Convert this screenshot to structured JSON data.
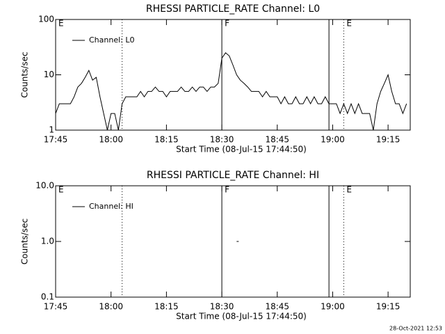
{
  "charts": [
    {
      "type": "line",
      "title": "RHESSI PARTICLE_RATE Channel: L0",
      "x_label": "Start Time (08-Jul-15 17:44:50)",
      "y_label": "Counts/sec",
      "log_y": true,
      "legend": "upper left",
      "xlim": [
        "17:45",
        "19:21"
      ],
      "xticks": [
        "17:45",
        "18:00",
        "18:15",
        "18:30",
        "18:45",
        "19:00",
        "19:15"
      ],
      "ylim": [
        1,
        100
      ],
      "yticks": [
        1,
        10,
        100
      ],
      "lines": [
        {
          "x": "18:03",
          "style": "dotted"
        },
        {
          "x": "18:30",
          "style": "solid"
        },
        {
          "x": "18:59",
          "style": "solid"
        },
        {
          "x": "19:03",
          "style": "dotted"
        },
        {
          "x": "19:21",
          "style": "dotted"
        }
      ],
      "annotations": [
        {
          "x": "17:45",
          "text": "E"
        },
        {
          "x": "18:30",
          "text": "F"
        },
        {
          "x": "19:03",
          "text": "E"
        }
      ],
      "series": [
        {
          "name": "Channel: L0",
          "color": "#000000",
          "x": [
            "17:45",
            "17:46",
            "17:47",
            "17:48",
            "17:49",
            "17:50",
            "17:51",
            "17:52",
            "17:53",
            "17:54",
            "17:55",
            "17:56",
            "17:57",
            "17:58",
            "17:59",
            "18:00",
            "18:01",
            "18:02",
            "18:03",
            "18:04",
            "18:05",
            "18:06",
            "18:07",
            "18:08",
            "18:09",
            "18:10",
            "18:11",
            "18:12",
            "18:13",
            "18:14",
            "18:15",
            "18:16",
            "18:17",
            "18:18",
            "18:19",
            "18:20",
            "18:21",
            "18:22",
            "18:23",
            "18:24",
            "18:25",
            "18:26",
            "18:27",
            "18:28",
            "18:29",
            "18:30",
            "18:31",
            "18:32",
            "18:33",
            "18:34",
            "18:35",
            "18:36",
            "18:37",
            "18:38",
            "18:39",
            "18:40",
            "18:41",
            "18:42",
            "18:43",
            "18:44",
            "18:45",
            "18:46",
            "18:47",
            "18:48",
            "18:49",
            "18:50",
            "18:51",
            "18:52",
            "18:53",
            "18:54",
            "18:55",
            "18:56",
            "18:57",
            "18:58",
            "18:59",
            "19:00",
            "19:01",
            "19:02",
            "19:03",
            "19:04",
            "19:05",
            "19:06",
            "19:07",
            "19:08",
            "19:09",
            "19:10",
            "19:11",
            "19:12",
            "19:13",
            "19:14",
            "19:15",
            "19:16",
            "19:17",
            "19:18",
            "19:19",
            "19:20"
          ],
          "values": [
            2,
            3,
            3,
            3,
            3,
            4,
            6,
            7,
            9,
            12,
            8,
            9,
            4,
            2,
            1,
            2,
            2,
            1,
            3,
            4,
            4,
            4,
            4,
            5,
            4,
            5,
            5,
            6,
            5,
            5,
            4,
            5,
            5,
            5,
            6,
            5,
            5,
            6,
            5,
            6,
            6,
            5,
            6,
            6,
            7,
            20,
            25,
            22,
            15,
            10,
            8,
            7,
            6,
            5,
            5,
            5,
            4,
            5,
            4,
            4,
            4,
            3,
            4,
            3,
            3,
            4,
            3,
            3,
            4,
            3,
            4,
            3,
            3,
            4,
            3,
            3,
            3,
            2,
            3,
            2,
            3,
            2,
            3,
            2,
            2,
            2,
            1,
            3,
            5,
            7,
            10,
            5,
            3,
            3,
            2,
            3
          ]
        }
      ]
    },
    {
      "type": "line",
      "title": "RHESSI PARTICLE_RATE Channel: HI",
      "x_label": "Start Time (08-Jul-15 17:44:50)",
      "y_label": "Counts/sec",
      "log_y": true,
      "legend": "upper left",
      "xlim": [
        "17:45",
        "19:21"
      ],
      "xticks": [
        "17:45",
        "18:00",
        "18:15",
        "18:30",
        "18:45",
        "19:00",
        "19:15"
      ],
      "ylim": [
        0.1,
        10
      ],
      "yticks": [
        0.1,
        {
          "value": 1,
          "label": "1.0"
        },
        {
          "value": 10,
          "label": "10.0"
        }
      ],
      "lines": [
        {
          "x": "18:03",
          "style": "dotted"
        },
        {
          "x": "18:30",
          "style": "solid"
        },
        {
          "x": "18:59",
          "style": "solid"
        },
        {
          "x": "19:03",
          "style": "dotted"
        },
        {
          "x": "19:21",
          "style": "dotted"
        }
      ],
      "annotations": [
        {
          "x": "17:45",
          "text": "E"
        },
        {
          "x": "18:30",
          "text": "F"
        },
        {
          "x": "19:03",
          "text": "E"
        }
      ],
      "series": [
        {
          "name": "Channel: HI",
          "color": "#000000",
          "x": [
            "18:34"
          ],
          "values": [
            1
          ]
        }
      ]
    }
  ],
  "footer": "28-Oct-2021 12:53"
}
